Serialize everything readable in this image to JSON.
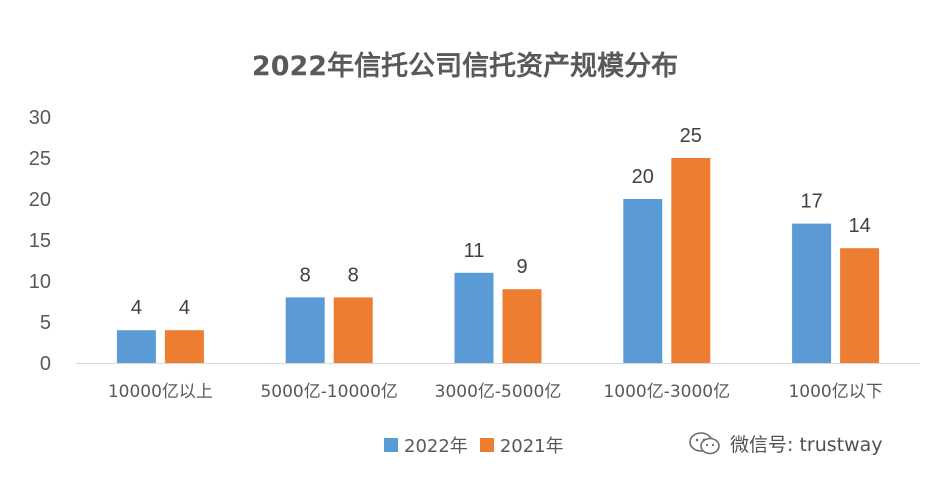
{
  "chart_data": {
    "type": "bar",
    "title": "2022年信托公司信托资产规模分布",
    "categories": [
      "10000亿以上",
      "5000亿-10000亿",
      "3000亿-5000亿",
      "1000亿-3000亿",
      "1000亿以下"
    ],
    "series": [
      {
        "name": "2022年",
        "values": [
          4,
          8,
          11,
          20,
          17
        ],
        "color": "#5B9BD5"
      },
      {
        "name": "2021年",
        "values": [
          4,
          8,
          9,
          25,
          14
        ],
        "color": "#ED7D31"
      }
    ],
    "ylim": [
      0,
      30
    ],
    "yticks": [
      "0",
      "5",
      "10",
      "15",
      "20",
      "25",
      "30"
    ],
    "grid": false,
    "legend_position": "bottom",
    "data_labels": true
  },
  "legend": {
    "series1": "2022年",
    "series2": "2021年"
  },
  "watermark": {
    "text": "微信号: trustway",
    "icon": "wechat-icon"
  }
}
